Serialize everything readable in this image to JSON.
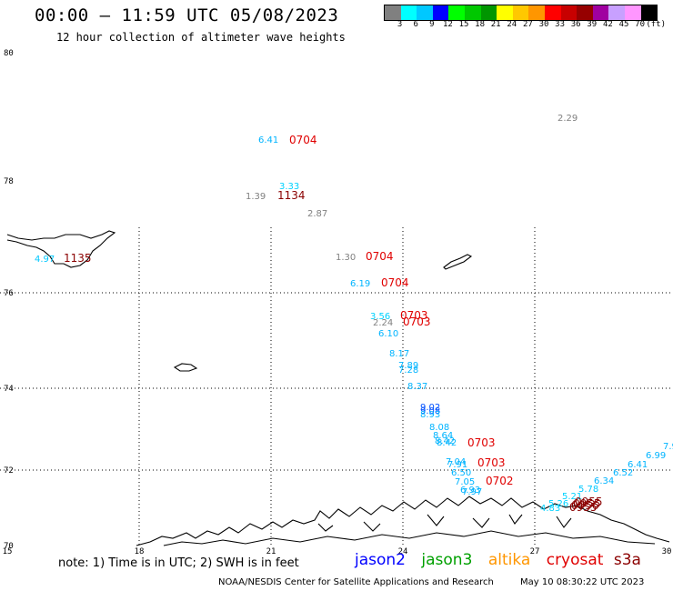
{
  "header": {
    "title": "00:00 — 11:59 UTC 05/08/2023",
    "subtitle": "12 hour collection of altimeter wave heights"
  },
  "colorbar": {
    "colors": [
      "#808080",
      "#00ffff",
      "#00c8ff",
      "#0000ff",
      "#00ff00",
      "#00c800",
      "#009600",
      "#ffff00",
      "#ffc800",
      "#ff9600",
      "#ff0000",
      "#c80000",
      "#960000",
      "#a000a0",
      "#c8a0ff",
      "#ff96ff",
      "#000000"
    ],
    "labels": [
      "3",
      "6",
      "9",
      "12",
      "15",
      "18",
      "21",
      "24",
      "27",
      "30",
      "33",
      "36",
      "39",
      "42",
      "45",
      "70",
      "(ft)"
    ]
  },
  "axes": {
    "lat_labels": [
      "80",
      "78",
      "76",
      "74",
      "72",
      "70"
    ],
    "lon_labels": [
      "15",
      "18",
      "21",
      "24",
      "27",
      "30"
    ]
  },
  "observations": [
    {
      "text": "2.29",
      "color": "#808080"
    },
    {
      "text": "6.41",
      "color": "#00b4ff"
    },
    {
      "text": "0704",
      "color": "#e00000"
    },
    {
      "text": "3.33",
      "color": "#00d2ff"
    },
    {
      "text": "1.39",
      "color": "#808080"
    },
    {
      "text": "1134",
      "color": "#8b0000"
    },
    {
      "text": "2.87",
      "color": "#808080"
    },
    {
      "text": "4.97",
      "color": "#00c8ff"
    },
    {
      "text": "1135",
      "color": "#8b0000"
    },
    {
      "text": "1.30",
      "color": "#808080"
    },
    {
      "text": "0704",
      "color": "#e00000"
    },
    {
      "text": "6.19",
      "color": "#00b4ff"
    },
    {
      "text": "0704",
      "color": "#e00000"
    },
    {
      "text": "3.56",
      "color": "#00d2ff"
    },
    {
      "text": "0703",
      "color": "#e00000"
    },
    {
      "text": "2.24",
      "color": "#808080"
    },
    {
      "text": "0703",
      "color": "#e00000"
    },
    {
      "text": "6.10",
      "color": "#00b4ff"
    },
    {
      "text": "8.17",
      "color": "#00b4ff"
    },
    {
      "text": "7.89",
      "color": "#00b4ff"
    },
    {
      "text": "7.28",
      "color": "#00b4ff"
    },
    {
      "text": "8.37",
      "color": "#00b4ff"
    },
    {
      "text": "9.02",
      "color": "#0050ff"
    },
    {
      "text": "9.08",
      "color": "#0050ff"
    },
    {
      "text": "8.93",
      "color": "#00b4ff"
    },
    {
      "text": "8.08",
      "color": "#00b4ff"
    },
    {
      "text": "8.64",
      "color": "#00b4ff"
    },
    {
      "text": "8.42",
      "color": "#00b4ff"
    },
    {
      "text": "8.42",
      "color": "#00b4ff"
    },
    {
      "text": "0703",
      "color": "#e00000"
    },
    {
      "text": "7.04",
      "color": "#00b4ff"
    },
    {
      "text": "7.91",
      "color": "#00b4ff"
    },
    {
      "text": "0703",
      "color": "#e00000"
    },
    {
      "text": "6.50",
      "color": "#00b4ff"
    },
    {
      "text": "7.05",
      "color": "#00b4ff"
    },
    {
      "text": "0702",
      "color": "#e00000"
    },
    {
      "text": "6.93",
      "color": "#00b4ff"
    },
    {
      "text": "7.97",
      "color": "#00b4ff"
    },
    {
      "text": "7.9",
      "color": "#00b4ff"
    },
    {
      "text": "6.99",
      "color": "#00b4ff"
    },
    {
      "text": "6.41",
      "color": "#00b4ff"
    },
    {
      "text": "6.52",
      "color": "#00b4ff"
    },
    {
      "text": "6.34",
      "color": "#00b4ff"
    },
    {
      "text": "5.78",
      "color": "#00c8ff"
    },
    {
      "text": "5.21",
      "color": "#00d2ff"
    },
    {
      "text": "5.26",
      "color": "#00d2ff"
    },
    {
      "text": "4.83",
      "color": "#00d2ff"
    },
    {
      "text": "0955",
      "color": "#8b0000"
    },
    {
      "text": "0956",
      "color": "#8b0000"
    },
    {
      "text": "0955",
      "color": "#8b0000"
    },
    {
      "text": "0955",
      "color": "#8b0000"
    }
  ],
  "footer": {
    "note": "note:  1) Time is in UTC;  2) SWH is in feet",
    "satellites": [
      {
        "name": "jason2",
        "color": "#0000ff"
      },
      {
        "name": "jason3",
        "color": "#00a000"
      },
      {
        "name": "altika",
        "color": "#ff9600"
      },
      {
        "name": "cryosat",
        "color": "#e00000"
      },
      {
        "name": "s3a",
        "color": "#8b0000"
      }
    ],
    "credit_org": "NOAA/NESDIS Center for Satellite Applications and Research",
    "credit_time": "May 10 08:30:22 UTC 2023"
  }
}
